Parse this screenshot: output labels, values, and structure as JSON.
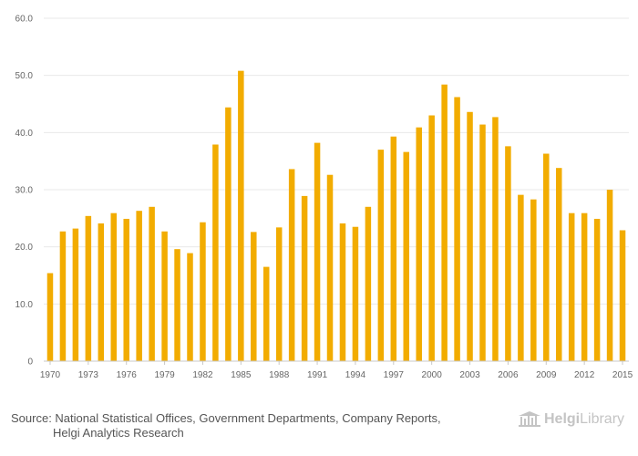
{
  "chart_data": {
    "type": "bar",
    "categories": [
      "1970",
      "1971",
      "1972",
      "1973",
      "1974",
      "1975",
      "1976",
      "1977",
      "1978",
      "1979",
      "1980",
      "1981",
      "1982",
      "1983",
      "1984",
      "1985",
      "1986",
      "1987",
      "1988",
      "1989",
      "1990",
      "1991",
      "1992",
      "1993",
      "1994",
      "1995",
      "1996",
      "1997",
      "1998",
      "1999",
      "2000",
      "2001",
      "2002",
      "2003",
      "2004",
      "2005",
      "2006",
      "2007",
      "2008",
      "2009",
      "2010",
      "2011",
      "2012",
      "2013",
      "2014",
      "2015"
    ],
    "values": [
      15.4,
      22.7,
      23.2,
      25.4,
      24.1,
      25.9,
      24.9,
      26.3,
      27.0,
      22.7,
      19.6,
      18.9,
      24.3,
      37.9,
      44.4,
      50.8,
      22.6,
      16.5,
      23.4,
      33.6,
      28.9,
      38.2,
      32.6,
      24.1,
      23.5,
      27.0,
      37.0,
      39.3,
      36.6,
      40.9,
      43.0,
      48.4,
      46.2,
      43.6,
      41.4,
      42.7,
      37.6,
      29.1,
      28.3,
      36.3,
      33.8,
      25.9,
      25.9,
      24.9,
      30.0,
      22.9
    ],
    "x_tick_labels": [
      "1970",
      "1973",
      "1976",
      "1979",
      "1982",
      "1985",
      "1988",
      "1991",
      "1994",
      "1997",
      "2000",
      "2003",
      "2006",
      "2009",
      "2012",
      "2015"
    ],
    "y_tick_labels": [
      "0",
      "10.0",
      "20.0",
      "30.0",
      "40.0",
      "50.0",
      "60.0"
    ],
    "ylim": [
      0,
      60
    ],
    "yticks": [
      0,
      10,
      20,
      30,
      40,
      50,
      60
    ],
    "grid": true,
    "title": "",
    "xlabel": "",
    "ylabel": ""
  },
  "colors": {
    "bar": "#f2ac00"
  },
  "footer": {
    "source_line1": "Source: National Statistical Offices, Government Departments, Company Reports,",
    "source_line2": "Helgi Analytics Research"
  },
  "logo": {
    "part1": "Helgi",
    "part2": "Library"
  }
}
